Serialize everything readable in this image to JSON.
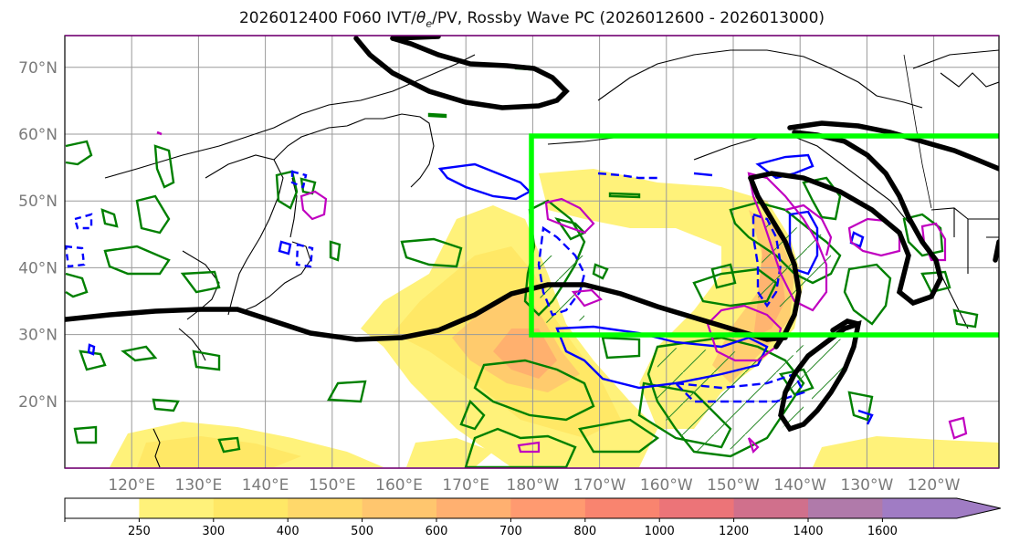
{
  "title": {
    "prefix": "2026012400 F060 IVT/",
    "theta": "θ",
    "theta_sub": "e",
    "suffix": "/PV, Rossby Wave PC (2026012600 - 2026013000)"
  },
  "map": {
    "lon_ticks": [
      {
        "lon": 120,
        "label": "120°E"
      },
      {
        "lon": 130,
        "label": "130°E"
      },
      {
        "lon": 140,
        "label": "140°E"
      },
      {
        "lon": 150,
        "label": "150°E"
      },
      {
        "lon": 160,
        "label": "160°E"
      },
      {
        "lon": 170,
        "label": "170°E"
      },
      {
        "lon": 180,
        "label": "180°W"
      },
      {
        "lon": 190,
        "label": "170°W"
      },
      {
        "lon": 200,
        "label": "160°W"
      },
      {
        "lon": 210,
        "label": "150°W"
      },
      {
        "lon": 220,
        "label": "140°W"
      },
      {
        "lon": 230,
        "label": "130°W"
      },
      {
        "lon": 240,
        "label": "120°W"
      }
    ],
    "lat_ticks": [
      {
        "lat": 20,
        "label": "20°N"
      },
      {
        "lat": 30,
        "label": "30°N"
      },
      {
        "lat": 40,
        "label": "40°N"
      },
      {
        "lat": 50,
        "label": "50°N"
      },
      {
        "lat": 60,
        "label": "60°N"
      },
      {
        "lat": 70,
        "label": "70°N"
      }
    ],
    "box_color": "#00ff00",
    "pv_color": "#000000",
    "theta_color": "#008000",
    "blue_color": "#0000ff",
    "magenta_color": "#c000c0"
  },
  "colorbar": {
    "levels": [
      "250",
      "300",
      "400",
      "500",
      "600",
      "700",
      "800",
      "1000",
      "1200",
      "1400",
      "1600"
    ],
    "colors": [
      "#ffffff",
      "#fff27a",
      "#ffe866",
      "#ffd86a",
      "#ffc66e",
      "#ffb070",
      "#ff9a70",
      "#f9846f",
      "#ec7478",
      "#d0708c",
      "#b07aaa",
      "#a07cc4"
    ]
  }
}
